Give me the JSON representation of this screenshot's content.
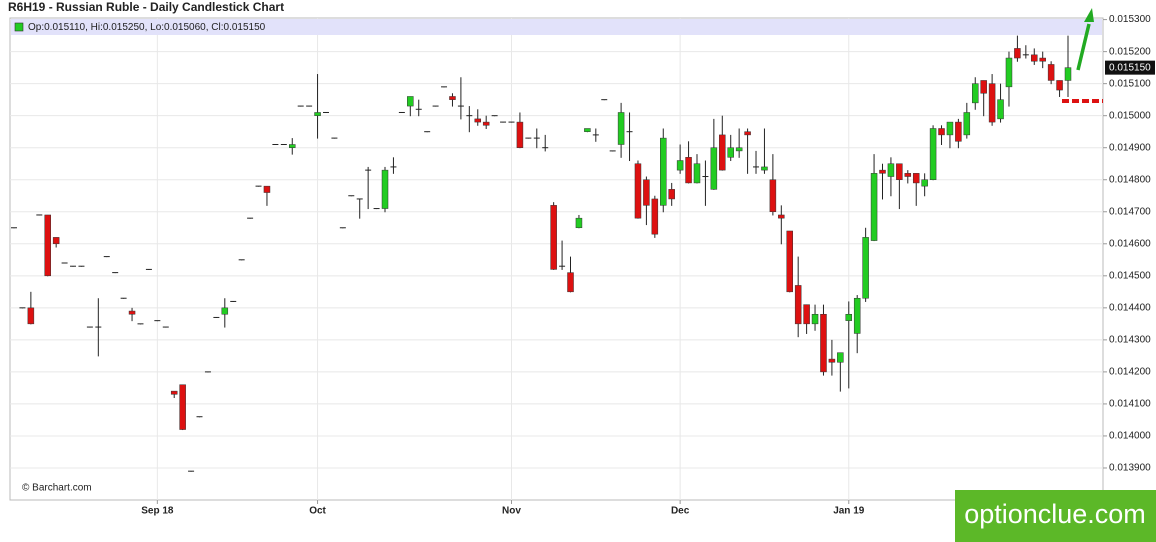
{
  "chart_data": {
    "type": "candlestick",
    "title": "R6H19 - Russian Ruble - Daily Candlestick Chart",
    "legend": "Op:0.015110, Hi:0.015250, Lo:0.015060, Cl:0.015150",
    "source": "© Barchart.com",
    "watermark": "optionclue.com",
    "last_price": {
      "value": 0.01515,
      "label": "0.015150"
    },
    "up_color": "#22cc22",
    "down_color": "#dd1111",
    "grid": true,
    "categories": [
      null,
      null,
      null,
      null,
      null,
      null,
      null,
      null,
      null,
      null,
      null,
      null,
      null,
      null,
      null,
      null,
      null,
      "Sep 18",
      null,
      null,
      null,
      null,
      null,
      null,
      null,
      null,
      null,
      null,
      null,
      null,
      null,
      null,
      null,
      null,
      null,
      null,
      "Oct",
      null,
      null,
      null,
      null,
      null,
      null,
      null,
      null,
      null,
      null,
      null,
      null,
      null,
      null,
      null,
      null,
      null,
      null,
      null,
      null,
      null,
      null,
      "Nov",
      null,
      null,
      null,
      null,
      null,
      null,
      null,
      null,
      null,
      null,
      null,
      null,
      null,
      null,
      null,
      null,
      null,
      null,
      null,
      "Dec",
      null,
      null,
      null,
      null,
      null,
      null,
      null,
      null,
      null,
      null,
      null,
      null,
      null,
      null,
      null,
      null,
      null,
      null,
      null,
      "Jan 19",
      null,
      null,
      null,
      null,
      null,
      null,
      null,
      null,
      null,
      null,
      null,
      null,
      null,
      null,
      null,
      null,
      null,
      null,
      null,
      null,
      null,
      null,
      null,
      null,
      null,
      null
    ],
    "open": [
      0.01465,
      0.0144,
      0.0144,
      0.01469,
      0.01469,
      0.01462,
      0.01454,
      0.01453,
      0.01453,
      0.01434,
      0.01434,
      0.01456,
      0.01451,
      0.01443,
      0.01439,
      0.01435,
      0.01452,
      0.01436,
      0.01434,
      0.01414,
      0.01416,
      0.01389,
      0.01406,
      0.0142,
      0.01437,
      0.01438,
      0.01442,
      0.01455,
      0.01468,
      0.01478,
      0.01478,
      0.01491,
      0.01491,
      0.0149,
      0.01503,
      0.01503,
      0.015,
      0.01501,
      0.01493,
      0.01465,
      0.01475,
      0.01474,
      0.01483,
      0.01471,
      0.01471,
      0.01484,
      0.01501,
      0.01503,
      0.01502,
      0.01495,
      0.01503,
      0.01509,
      0.01506,
      0.01503,
      0.015,
      0.01499,
      0.01498,
      0.015,
      0.01498,
      0.01498,
      0.01498,
      0.01493,
      0.01493,
      0.0149,
      0.01472,
      0.01453,
      0.01451,
      0.01465,
      0.01495,
      0.01494,
      0.01505,
      0.01489,
      0.01491,
      0.01495,
      0.01485,
      0.0148,
      0.01474,
      0.01472,
      0.01477,
      0.01483,
      0.01487,
      0.01479,
      0.01481,
      0.01477,
      0.01494,
      0.01487,
      0.01489,
      0.01495,
      0.01484,
      0.01483,
      0.0148,
      0.01469,
      0.01464,
      0.01447,
      0.01441,
      0.01435,
      0.01438,
      0.01424,
      0.01423,
      0.01436,
      0.01432,
      0.01443,
      0.01461,
      0.01483,
      0.01481,
      0.01485,
      0.01482,
      0.01482,
      0.01478,
      0.0148,
      0.01496,
      0.01494,
      0.01498,
      0.01494,
      0.01504,
      0.01511,
      0.0151,
      0.01499,
      0.01509,
      0.01521,
      0.01519,
      0.01519,
      0.01518,
      0.01516,
      0.01511,
      0.01511
    ],
    "high": [
      0.01465,
      0.0144,
      0.01445,
      0.01469,
      0.01469,
      0.01462,
      0.01454,
      0.01453,
      0.01453,
      0.01434,
      0.01443,
      0.01456,
      0.01451,
      0.01443,
      0.0144,
      0.01435,
      0.01452,
      0.01436,
      0.01434,
      0.01414,
      0.01416,
      0.01389,
      0.01406,
      0.0142,
      0.01437,
      0.01443,
      0.01442,
      0.01455,
      0.01468,
      0.01478,
      0.01478,
      0.01491,
      0.01491,
      0.01493,
      0.01503,
      0.01503,
      0.01513,
      0.01501,
      0.01493,
      0.01465,
      0.01475,
      0.01474,
      0.01484,
      0.01471,
      0.01484,
      0.01487,
      0.01501,
      0.01506,
      0.01505,
      0.01495,
      0.01503,
      0.01509,
      0.01507,
      0.01512,
      0.01503,
      0.01502,
      0.015,
      0.015,
      0.01498,
      0.01498,
      0.01501,
      0.01493,
      0.01496,
      0.01494,
      0.01473,
      0.01461,
      0.01456,
      0.01469,
      0.01496,
      0.01496,
      0.01505,
      0.01489,
      0.01504,
      0.01501,
      0.01486,
      0.01481,
      0.01475,
      0.01496,
      0.01479,
      0.01491,
      0.01492,
      0.01488,
      0.01486,
      0.01499,
      0.015,
      0.01494,
      0.01496,
      0.01496,
      0.01489,
      0.01496,
      0.01488,
      0.01472,
      0.01464,
      0.01456,
      0.01441,
      0.01441,
      0.01441,
      0.0143,
      0.01426,
      0.01442,
      0.01444,
      0.01465,
      0.01488,
      0.01485,
      0.01487,
      0.01485,
      0.01483,
      0.01482,
      0.01482,
      0.01497,
      0.01497,
      0.01498,
      0.01499,
      0.01504,
      0.01512,
      0.01511,
      0.01513,
      0.0151,
      0.0152,
      0.01525,
      0.01522,
      0.01521,
      0.0152,
      0.01517,
      0.01511,
      0.01525
    ],
    "low": [
      0.01465,
      0.0144,
      0.01435,
      0.01469,
      0.0145,
      0.01459,
      0.01454,
      0.01453,
      0.01453,
      0.01434,
      0.01425,
      0.01456,
      0.01451,
      0.01443,
      0.01436,
      0.01435,
      0.01452,
      0.01436,
      0.01434,
      0.01412,
      0.01402,
      0.01389,
      0.01406,
      0.0142,
      0.01437,
      0.01434,
      0.01442,
      0.01455,
      0.01468,
      0.01478,
      0.01472,
      0.01491,
      0.01491,
      0.01488,
      0.01503,
      0.01503,
      0.01493,
      0.01501,
      0.01493,
      0.01465,
      0.01475,
      0.01468,
      0.01471,
      0.01471,
      0.0147,
      0.01482,
      0.01501,
      0.015,
      0.015,
      0.01495,
      0.01503,
      0.01509,
      0.01503,
      0.01499,
      0.01495,
      0.01497,
      0.01496,
      0.015,
      0.01498,
      0.01498,
      0.0149,
      0.01493,
      0.0149,
      0.01489,
      0.01452,
      0.01452,
      0.01445,
      0.01465,
      0.01495,
      0.01492,
      0.01505,
      0.01489,
      0.01487,
      0.01486,
      0.01468,
      0.01466,
      0.01462,
      0.0147,
      0.01472,
      0.01482,
      0.01479,
      0.01479,
      0.01472,
      0.01477,
      0.01483,
      0.01486,
      0.01487,
      0.01482,
      0.01482,
      0.01482,
      0.01469,
      0.0146,
      0.01445,
      0.01431,
      0.01432,
      0.01433,
      0.01419,
      0.01419,
      0.01414,
      0.01415,
      0.01426,
      0.01442,
      0.01461,
      0.01474,
      0.01475,
      0.01471,
      0.01479,
      0.01472,
      0.01475,
      0.0148,
      0.01491,
      0.0149,
      0.0149,
      0.01493,
      0.01502,
      0.015,
      0.01497,
      0.01498,
      0.01503,
      0.01517,
      0.01518,
      0.01516,
      0.01515,
      0.0151,
      0.01506,
      0.01506
    ],
    "close": [
      0.01465,
      0.0144,
      0.01435,
      0.01469,
      0.0145,
      0.0146,
      0.01454,
      0.01453,
      0.01453,
      0.01434,
      0.01434,
      0.01456,
      0.01451,
      0.01443,
      0.01438,
      0.01435,
      0.01452,
      0.01436,
      0.01434,
      0.01413,
      0.01402,
      0.01389,
      0.01406,
      0.0142,
      0.01437,
      0.0144,
      0.01442,
      0.01455,
      0.01468,
      0.01478,
      0.01476,
      0.01491,
      0.01491,
      0.01491,
      0.01503,
      0.01503,
      0.01501,
      0.01501,
      0.01493,
      0.01465,
      0.01475,
      0.01474,
      0.01483,
      0.01471,
      0.01483,
      0.01484,
      0.01501,
      0.01506,
      0.01502,
      0.01495,
      0.01503,
      0.01509,
      0.01505,
      0.01503,
      0.015,
      0.01498,
      0.01497,
      0.015,
      0.01498,
      0.01498,
      0.0149,
      0.01493,
      0.01493,
      0.0149,
      0.01452,
      0.01453,
      0.01445,
      0.01468,
      0.01496,
      0.01494,
      0.01505,
      0.01489,
      0.01501,
      0.01495,
      0.01468,
      0.01472,
      0.01463,
      0.01493,
      0.01474,
      0.01486,
      0.01479,
      0.01485,
      0.01481,
      0.0149,
      0.01483,
      0.0149,
      0.0149,
      0.01494,
      0.01484,
      0.01484,
      0.0147,
      0.01468,
      0.01445,
      0.01435,
      0.01435,
      0.01438,
      0.0142,
      0.01423,
      0.01426,
      0.01438,
      0.01443,
      0.01462,
      0.01482,
      0.01482,
      0.01485,
      0.0148,
      0.01481,
      0.01479,
      0.0148,
      0.01496,
      0.01494,
      0.01498,
      0.01492,
      0.01501,
      0.0151,
      0.01507,
      0.01498,
      0.01505,
      0.01518,
      0.01518,
      0.01519,
      0.01517,
      0.01517,
      0.01511,
      0.01508,
      0.01515
    ],
    "ylim": [
      0.0138,
      0.015305
    ],
    "yticks": [
      {
        "value": 0.0139,
        "label": "0.013900"
      },
      {
        "value": 0.014,
        "label": "0.014000"
      },
      {
        "value": 0.0141,
        "label": "0.014100"
      },
      {
        "value": 0.0142,
        "label": "0.014200"
      },
      {
        "value": 0.0143,
        "label": "0.014300"
      },
      {
        "value": 0.0144,
        "label": "0.014400"
      },
      {
        "value": 0.0145,
        "label": "0.014500"
      },
      {
        "value": 0.0146,
        "label": "0.014600"
      },
      {
        "value": 0.0147,
        "label": "0.014700"
      },
      {
        "value": 0.0148,
        "label": "0.014800"
      },
      {
        "value": 0.0149,
        "label": "0.014900"
      },
      {
        "value": 0.015,
        "label": "0.015000"
      },
      {
        "value": 0.0151,
        "label": "0.015100"
      },
      {
        "value": 0.0152,
        "label": "0.015200"
      },
      {
        "value": 0.0153,
        "label": "0.015300"
      }
    ]
  }
}
